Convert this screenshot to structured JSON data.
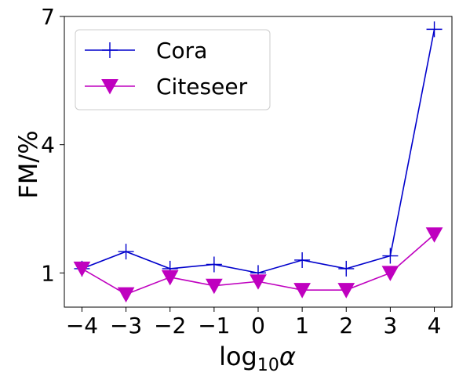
{
  "chart_data": {
    "type": "line",
    "xlabel": "log",
    "xlabel_sub": "10",
    "xlabel_var": "α",
    "ylabel": "FM/%",
    "x": [
      -4,
      -3,
      -2,
      -1,
      0,
      1,
      2,
      3,
      4
    ],
    "x_tick_labels": [
      "−4",
      "−3",
      "−2",
      "−1",
      "0",
      "1",
      "2",
      "3",
      "4"
    ],
    "y_ticks": [
      1,
      4,
      7
    ],
    "y_tick_labels": [
      "1",
      "4",
      "7"
    ],
    "xlim": [
      -4.4,
      4.4
    ],
    "ylim": [
      0.2,
      7.0
    ],
    "grid": false,
    "legend_position": "top-left",
    "series": [
      {
        "name": "Cora",
        "marker": "plus",
        "color": "#0000cc",
        "values": [
          1.1,
          1.5,
          1.1,
          1.2,
          1.0,
          1.3,
          1.1,
          1.4,
          6.7
        ]
      },
      {
        "name": "Citeseer",
        "marker": "triangle-down",
        "color": "#bf00bf",
        "values": [
          1.1,
          0.5,
          0.9,
          0.7,
          0.8,
          0.6,
          0.6,
          1.0,
          1.9
        ]
      }
    ]
  }
}
